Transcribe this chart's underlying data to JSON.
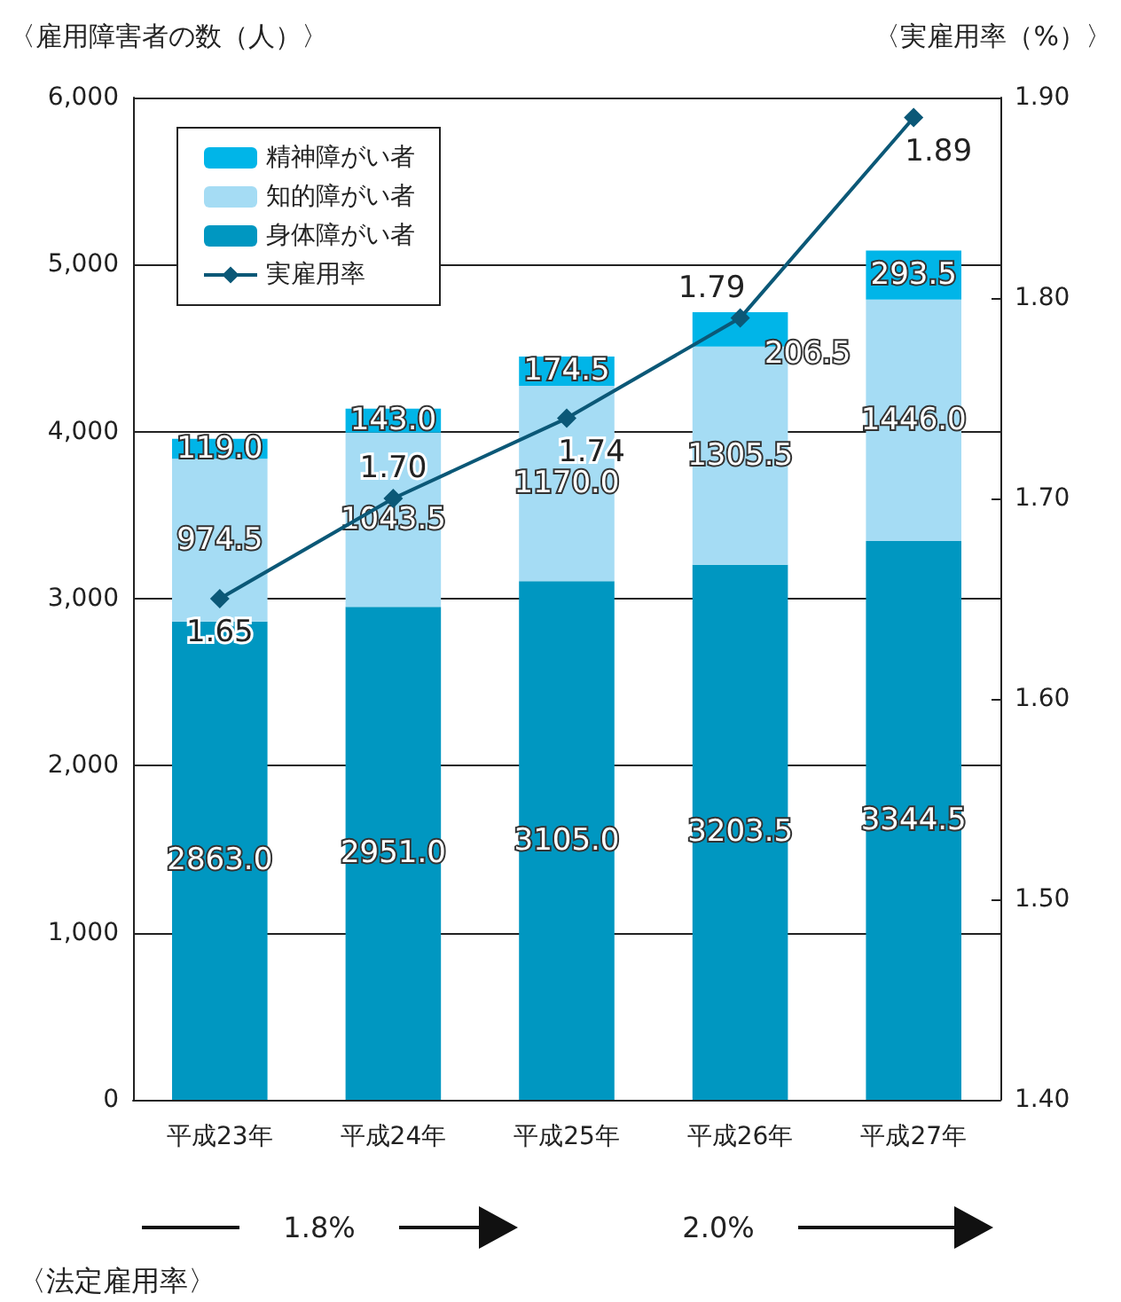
{
  "chart_data": {
    "type": "bar",
    "stacked": true,
    "categories": [
      "平成23年",
      "平成24年",
      "平成25年",
      "平成26年",
      "平成27年"
    ],
    "ylabel": "〈雇用障害者の数（人）〉",
    "y2label": "〈実雇用率（%）〉",
    "ylim": [
      0,
      6000
    ],
    "yticks": [
      0,
      {
        "value": 1000,
        "label": "1,000"
      },
      {
        "value": 2000,
        "label": "2,000"
      },
      {
        "value": 3000,
        "label": "3,000"
      },
      {
        "value": 4000,
        "label": "4,000"
      },
      {
        "value": 5000,
        "label": "5,000"
      },
      {
        "value": 6000,
        "label": "6,000"
      }
    ],
    "y2lim": [
      1.4,
      1.9
    ],
    "y2ticks": [
      {
        "value": 1.4,
        "label": "1.40"
      },
      {
        "value": 1.5,
        "label": "1.50"
      },
      {
        "value": 1.6,
        "label": "1.60"
      },
      {
        "value": 1.7,
        "label": "1.70"
      },
      {
        "value": 1.8,
        "label": "1.80"
      },
      {
        "value": 1.9,
        "label": "1.90"
      }
    ],
    "grid": "y",
    "legend": "top left",
    "series": [
      {
        "name": "身体障がい者",
        "color": "#0097c1",
        "values": [
          2863,
          2951,
          3105,
          3203.5,
          3344.5
        ],
        "value_labels": [
          "2863.0",
          "2951.0",
          "3105.0",
          "3203.5",
          "3344.5"
        ]
      },
      {
        "name": "知的障がい者",
        "color": "#a5dcf4",
        "values": [
          974.5,
          1043.5,
          1170,
          1305.5,
          1446
        ],
        "value_labels": [
          "974.5",
          "1043.5",
          "1170.0",
          "1305.5",
          "1446.0"
        ]
      },
      {
        "name": "精神障がい者",
        "color": "#00b5e8",
        "values": [
          119,
          143,
          174.5,
          206.5,
          293.5
        ],
        "value_labels": [
          "119.0",
          "143.0",
          "174.5",
          "206.5",
          "293.5"
        ]
      },
      {
        "name": "実雇用率",
        "type": "line",
        "axis": "y2",
        "color": "#0b5877",
        "marker": "diamond",
        "values": [
          1.65,
          1.7,
          1.74,
          1.79,
          1.89
        ],
        "value_labels": [
          "1.65",
          "1.70",
          "1.74",
          "1.79",
          "1.89"
        ]
      }
    ],
    "annotations": [
      "1.8%",
      "2.0%",
      "〈法定雇用率〉"
    ]
  }
}
